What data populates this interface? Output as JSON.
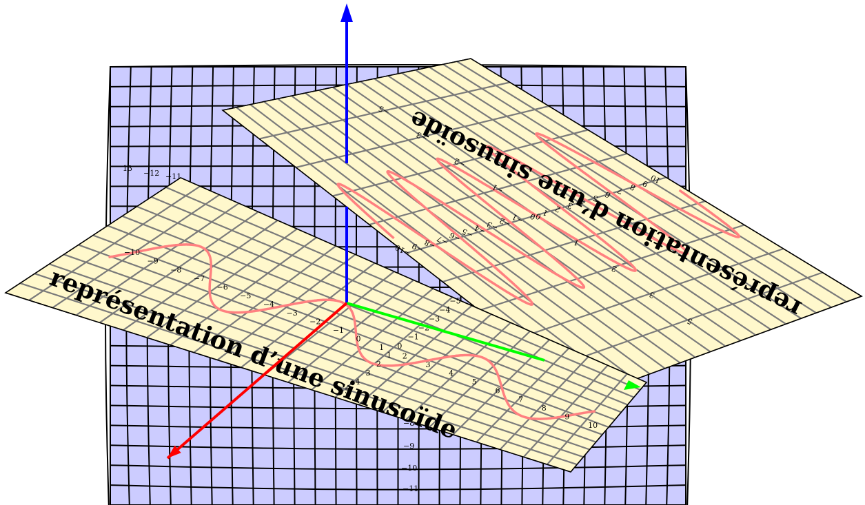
{
  "colors": {
    "back_plane": "#ccccff",
    "paper_plane": "#fff8cc",
    "wave": "#ff8080",
    "axis_x": "#ff0000",
    "axis_y": "#00ff00",
    "axis_z": "#0000ff"
  },
  "title": "représentation d’une sinusoïde",
  "front_x_ticks": [
    "−10",
    "−9",
    "−8",
    "−7",
    "−6",
    "−5",
    "−4",
    "−3",
    "−2",
    "−1",
    "0",
    "1",
    "2",
    "3",
    "4",
    "5",
    "6",
    "7",
    "8",
    "9",
    "10"
  ],
  "front_y_ticks": [
    "−5",
    "−4",
    "−3",
    "−2",
    "−1",
    "0",
    "1",
    "2",
    "3",
    "4",
    "5"
  ],
  "tilted_x_ticks": [
    "10",
    "9",
    "8",
    "7",
    "6",
    "5",
    "4",
    "3",
    "2",
    "1",
    "0",
    "−1",
    "−2",
    "−3",
    "−4",
    "−5",
    "−6",
    "−7",
    "−8",
    "−9",
    "−10"
  ],
  "tilted_y_ticks": [
    "5",
    "3",
    "2",
    "1",
    "0",
    "−1",
    "−2",
    "−3",
    "−5"
  ],
  "back_ticks": [
    "13",
    "−12",
    "−11",
    "−8",
    "−9",
    "−10",
    "−11"
  ],
  "chart_data": {
    "type": "line",
    "series": [
      {
        "function": "3 sin(x)",
        "x_range": [
          -10,
          10
        ]
      }
    ],
    "xlim": [
      -10,
      10
    ],
    "ylim": [
      -5,
      5
    ]
  }
}
